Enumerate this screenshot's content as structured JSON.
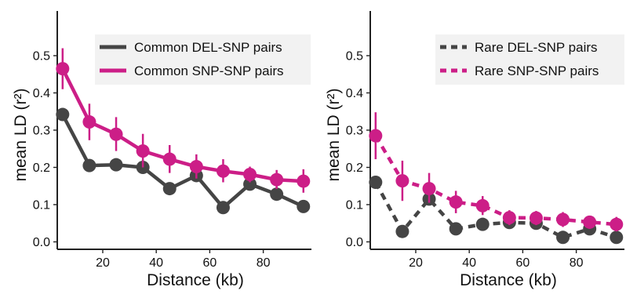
{
  "colors": {
    "del": "#454545",
    "snp": "#cc1e87",
    "legend_bg": "#f2f2f2",
    "axis": "#222222"
  },
  "chart_data": [
    {
      "type": "line",
      "title": "",
      "xlabel": "Distance (kb)",
      "ylabel": "mean LD (r²)",
      "xlim": [
        3,
        98
      ],
      "ylim": [
        -0.02,
        0.62
      ],
      "xticks": [
        20,
        40,
        60,
        80
      ],
      "yticks": [
        0.0,
        0.1,
        0.2,
        0.3,
        0.4,
        0.5
      ],
      "ytick_labels": [
        "0.0",
        "0.1",
        "0.2",
        "0.3",
        "0.4",
        "0.5"
      ],
      "line_style": "solid",
      "legend_position": "top-right",
      "grid": false,
      "x": [
        5,
        15,
        25,
        35,
        45,
        55,
        65,
        75,
        85,
        95
      ],
      "series": [
        {
          "name": "Common DEL-SNP pairs",
          "color": "#454545",
          "values": [
            0.342,
            0.205,
            0.207,
            0.2,
            0.143,
            0.178,
            0.092,
            0.155,
            0.128,
            0.095
          ]
        },
        {
          "name": "Common SNP-SNP pairs",
          "color": "#cc1e87",
          "values": [
            0.465,
            0.322,
            0.289,
            0.244,
            0.222,
            0.202,
            0.19,
            0.181,
            0.167,
            0.163
          ],
          "error_low": [
            0.41,
            0.273,
            0.244,
            0.2,
            0.185,
            0.17,
            0.16,
            0.16,
            0.142,
            0.132
          ],
          "error_high": [
            0.52,
            0.371,
            0.335,
            0.29,
            0.26,
            0.235,
            0.222,
            0.202,
            0.193,
            0.195
          ]
        }
      ]
    },
    {
      "type": "line",
      "title": "",
      "xlabel": "Distance (kb)",
      "ylabel": "mean LD (r²)",
      "xlim": [
        3,
        98
      ],
      "ylim": [
        -0.02,
        0.62
      ],
      "xticks": [
        20,
        40,
        60,
        80
      ],
      "yticks": [
        0.0,
        0.1,
        0.2,
        0.3,
        0.4,
        0.5
      ],
      "ytick_labels": [
        "0.0",
        "0.1",
        "0.2",
        "0.3",
        "0.4",
        "0.5"
      ],
      "line_style": "dashed",
      "legend_position": "top-right",
      "grid": false,
      "x": [
        5,
        15,
        25,
        35,
        45,
        55,
        65,
        75,
        85,
        95
      ],
      "series": [
        {
          "name": "Rare DEL-SNP pairs",
          "color": "#454545",
          "values": [
            0.16,
            0.028,
            0.115,
            0.035,
            0.047,
            0.052,
            0.05,
            0.012,
            0.035,
            0.012
          ]
        },
        {
          "name": "Rare SNP-SNP pairs",
          "color": "#cc1e87",
          "values": [
            0.285,
            0.164,
            0.143,
            0.107,
            0.097,
            0.065,
            0.064,
            0.06,
            0.053,
            0.047
          ],
          "error_low": [
            0.222,
            0.11,
            0.105,
            0.077,
            0.072,
            0.045,
            0.045,
            0.04,
            0.035,
            0.028
          ],
          "error_high": [
            0.348,
            0.218,
            0.185,
            0.137,
            0.123,
            0.085,
            0.083,
            0.08,
            0.07,
            0.067
          ]
        }
      ]
    }
  ]
}
